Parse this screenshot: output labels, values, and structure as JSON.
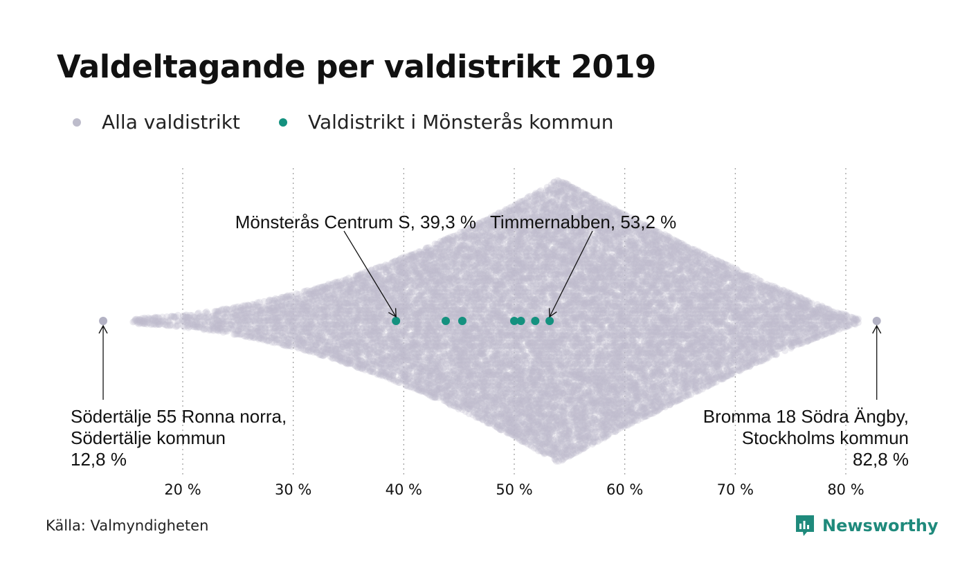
{
  "title": "Valdeltagande per valdistrikt 2019",
  "legend": {
    "items": [
      {
        "label": "Alla valdistrikt",
        "color": "#bdbccb"
      },
      {
        "label": "Valdistrikt i Mönsterås kommun",
        "color": "#14917f"
      }
    ]
  },
  "source": "Källa: Valmyndigheten",
  "brand": {
    "name": "Newsworthy",
    "icon": "newsworthy-logo-icon",
    "color": "#1f8a7c"
  },
  "colors": {
    "all_districts": "#bdbccb",
    "highlight": "#14917f",
    "grid": "#999999",
    "text": "#111111"
  },
  "chart_data": {
    "type": "scatter",
    "subtype": "beeswarm",
    "x_unit": "%",
    "xlim": [
      12,
      84
    ],
    "x_ticks": [
      20,
      30,
      40,
      50,
      60,
      70,
      80
    ],
    "x_tick_labels": [
      "20 %",
      "30 %",
      "40 %",
      "50 %",
      "60 %",
      "70 %",
      "80 %"
    ],
    "grid": "vertical-dotted",
    "series": [
      {
        "name": "Alla valdistrikt",
        "distribution": "dense swarm peaking near 54 %",
        "min": 12.8,
        "max": 82.8,
        "peak": 54
      },
      {
        "name": "Valdistrikt i Mönsterås kommun",
        "values": [
          39.3,
          43.8,
          45.3,
          50.0,
          50.6,
          51.9,
          53.2
        ]
      }
    ],
    "annotations": [
      {
        "x": 39.3,
        "lines": [
          "Mönsterås Centrum S, 39,3 %"
        ]
      },
      {
        "x": 53.2,
        "lines": [
          "Timmernabben, 53,2 %"
        ]
      },
      {
        "x": 12.8,
        "lines": [
          "Södertälje 55 Ronna norra,",
          "Södertälje kommun",
          "12,8 %"
        ]
      },
      {
        "x": 82.8,
        "lines": [
          "Bromma 18 Södra Ängby,",
          "Stockholms kommun",
          "82,8 %"
        ]
      }
    ]
  }
}
